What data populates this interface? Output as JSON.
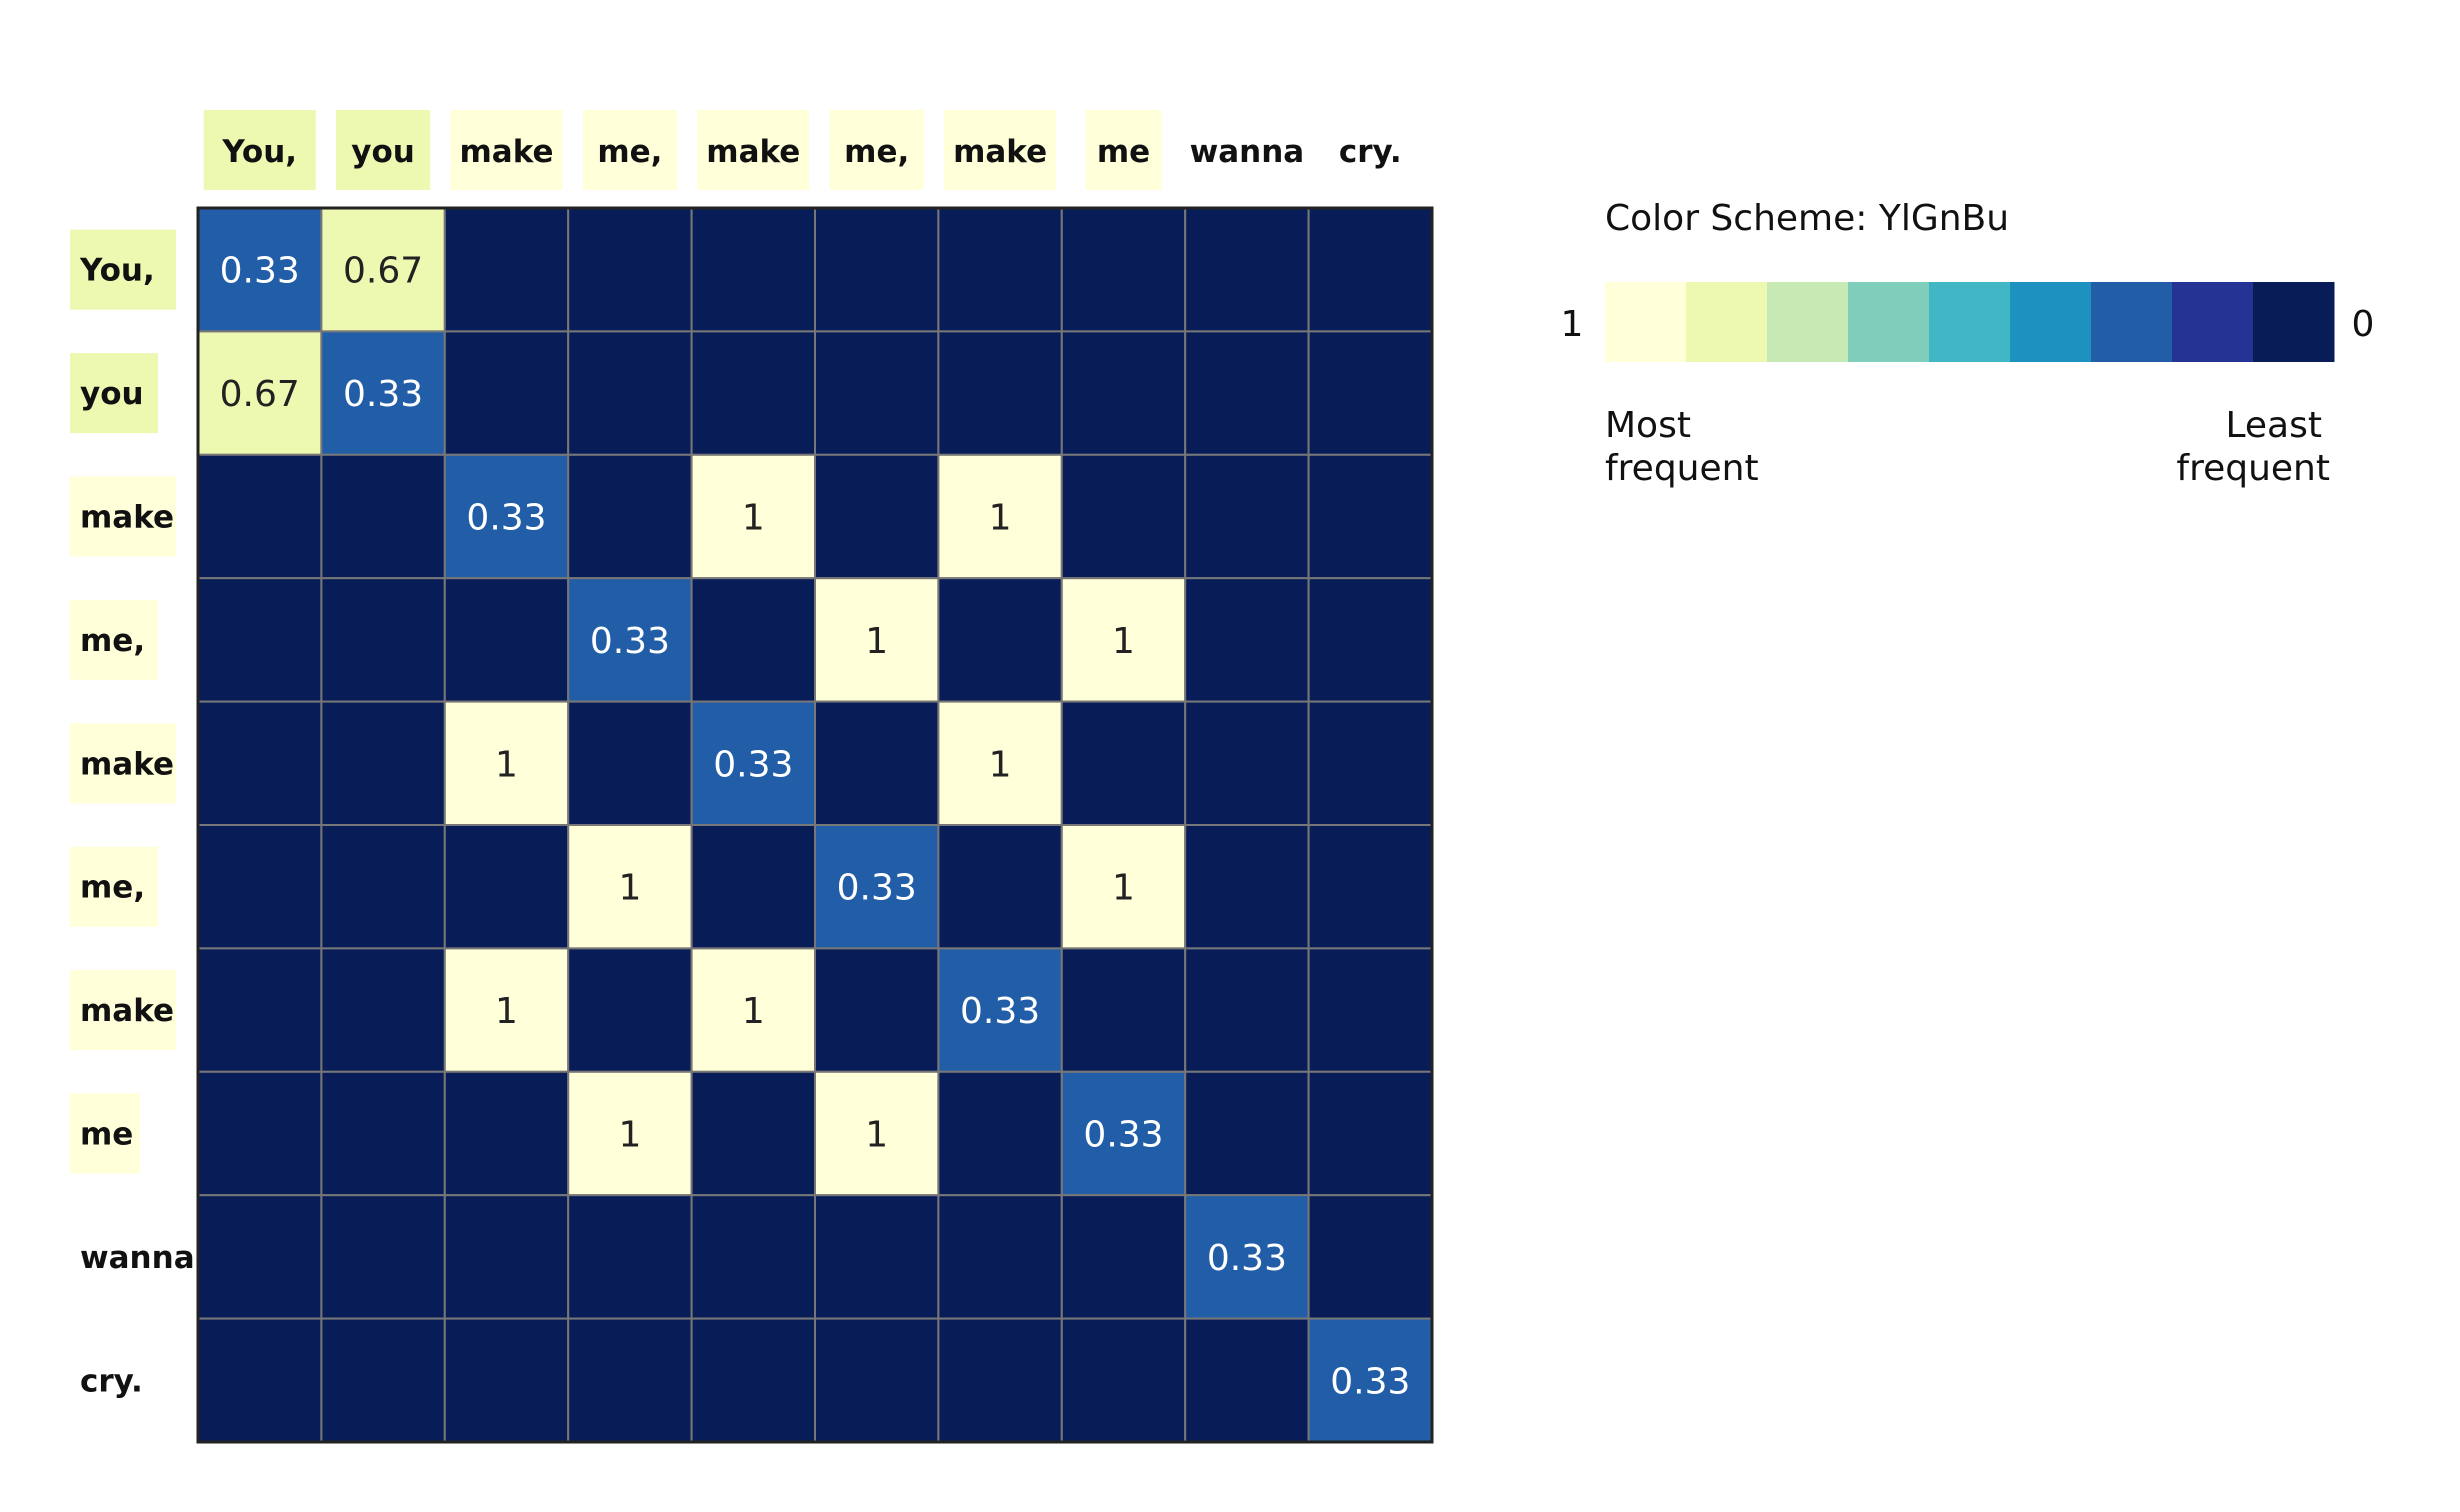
{
  "chart_data": {
    "type": "heatmap",
    "x_labels": [
      "You,",
      "you",
      "make",
      "me,",
      "make",
      "me,",
      "make",
      "me",
      "wanna",
      "cry."
    ],
    "y_labels": [
      "You,",
      "you",
      "make",
      "me,",
      "make",
      "me,",
      "make",
      "me",
      "wanna",
      "cry."
    ],
    "highlighted_tokens": [
      true,
      true,
      true,
      true,
      true,
      true,
      true,
      true,
      false,
      false
    ],
    "values": [
      [
        0.33,
        0.67,
        0,
        0,
        0,
        0,
        0,
        0,
        0,
        0
      ],
      [
        0.67,
        0.33,
        0,
        0,
        0,
        0,
        0,
        0,
        0,
        0
      ],
      [
        0,
        0,
        0.33,
        0,
        1,
        0,
        1,
        0,
        0,
        0
      ],
      [
        0,
        0,
        0,
        0.33,
        0,
        1,
        0,
        1,
        0,
        0
      ],
      [
        0,
        0,
        1,
        0,
        0.33,
        0,
        1,
        0,
        0,
        0
      ],
      [
        0,
        0,
        0,
        1,
        0,
        0.33,
        0,
        1,
        0,
        0
      ],
      [
        0,
        0,
        1,
        0,
        1,
        0,
        0.33,
        0,
        0,
        0
      ],
      [
        0,
        0,
        0,
        1,
        0,
        1,
        0,
        0.33,
        0,
        0
      ],
      [
        0,
        0,
        0,
        0,
        0,
        0,
        0,
        0,
        0.33,
        0
      ],
      [
        0,
        0,
        0,
        0,
        0,
        0,
        0,
        0,
        0,
        0.33
      ]
    ],
    "cell_labels": [
      [
        "0.33",
        "0.67",
        "",
        "",
        "",
        "",
        "",
        "",
        "",
        ""
      ],
      [
        "0.67",
        "0.33",
        "",
        "",
        "",
        "",
        "",
        "",
        "",
        ""
      ],
      [
        "",
        "",
        "0.33",
        "",
        "1",
        "",
        "1",
        "",
        "",
        ""
      ],
      [
        "",
        "",
        "",
        "0.33",
        "",
        "1",
        "",
        "1",
        "",
        ""
      ],
      [
        "",
        "",
        "1",
        "",
        "0.33",
        "",
        "1",
        "",
        "",
        ""
      ],
      [
        "",
        "",
        "",
        "1",
        "",
        "0.33",
        "",
        "1",
        "",
        ""
      ],
      [
        "",
        "",
        "1",
        "",
        "1",
        "",
        "0.33",
        "",
        "",
        ""
      ],
      [
        "",
        "",
        "",
        "1",
        "",
        "1",
        "",
        "0.33",
        "",
        ""
      ],
      [
        "",
        "",
        "",
        "",
        "",
        "",
        "",
        "",
        "0.33",
        ""
      ],
      [
        "",
        "",
        "",
        "",
        "",
        "",
        "",
        "",
        "",
        "0.33"
      ]
    ],
    "color_scheme": "YlGnBu",
    "color_range": [
      0,
      1
    ],
    "grid": true
  },
  "legend": {
    "title": "Color Scheme: YlGnBu",
    "max_label": "1",
    "min_label": "0",
    "left_caption_line1": "Most",
    "left_caption_line2": "frequent",
    "right_caption_line1": "Least",
    "right_caption_line2": "frequent",
    "swatches": [
      "#ffffd9",
      "#edf8b1",
      "#c7e9b4",
      "#7fcdbb",
      "#41b6c4",
      "#1d91c0",
      "#225ea8",
      "#253494",
      "#081d58"
    ]
  },
  "colors": {
    "max": "#ffffd9",
    "high": "#edf8b1",
    "mid": "#225ea8",
    "min": "#081d58",
    "grid": "#777777",
    "label_highlight": "#ffffd9",
    "label_highlight_strong": "#edf8b1"
  }
}
